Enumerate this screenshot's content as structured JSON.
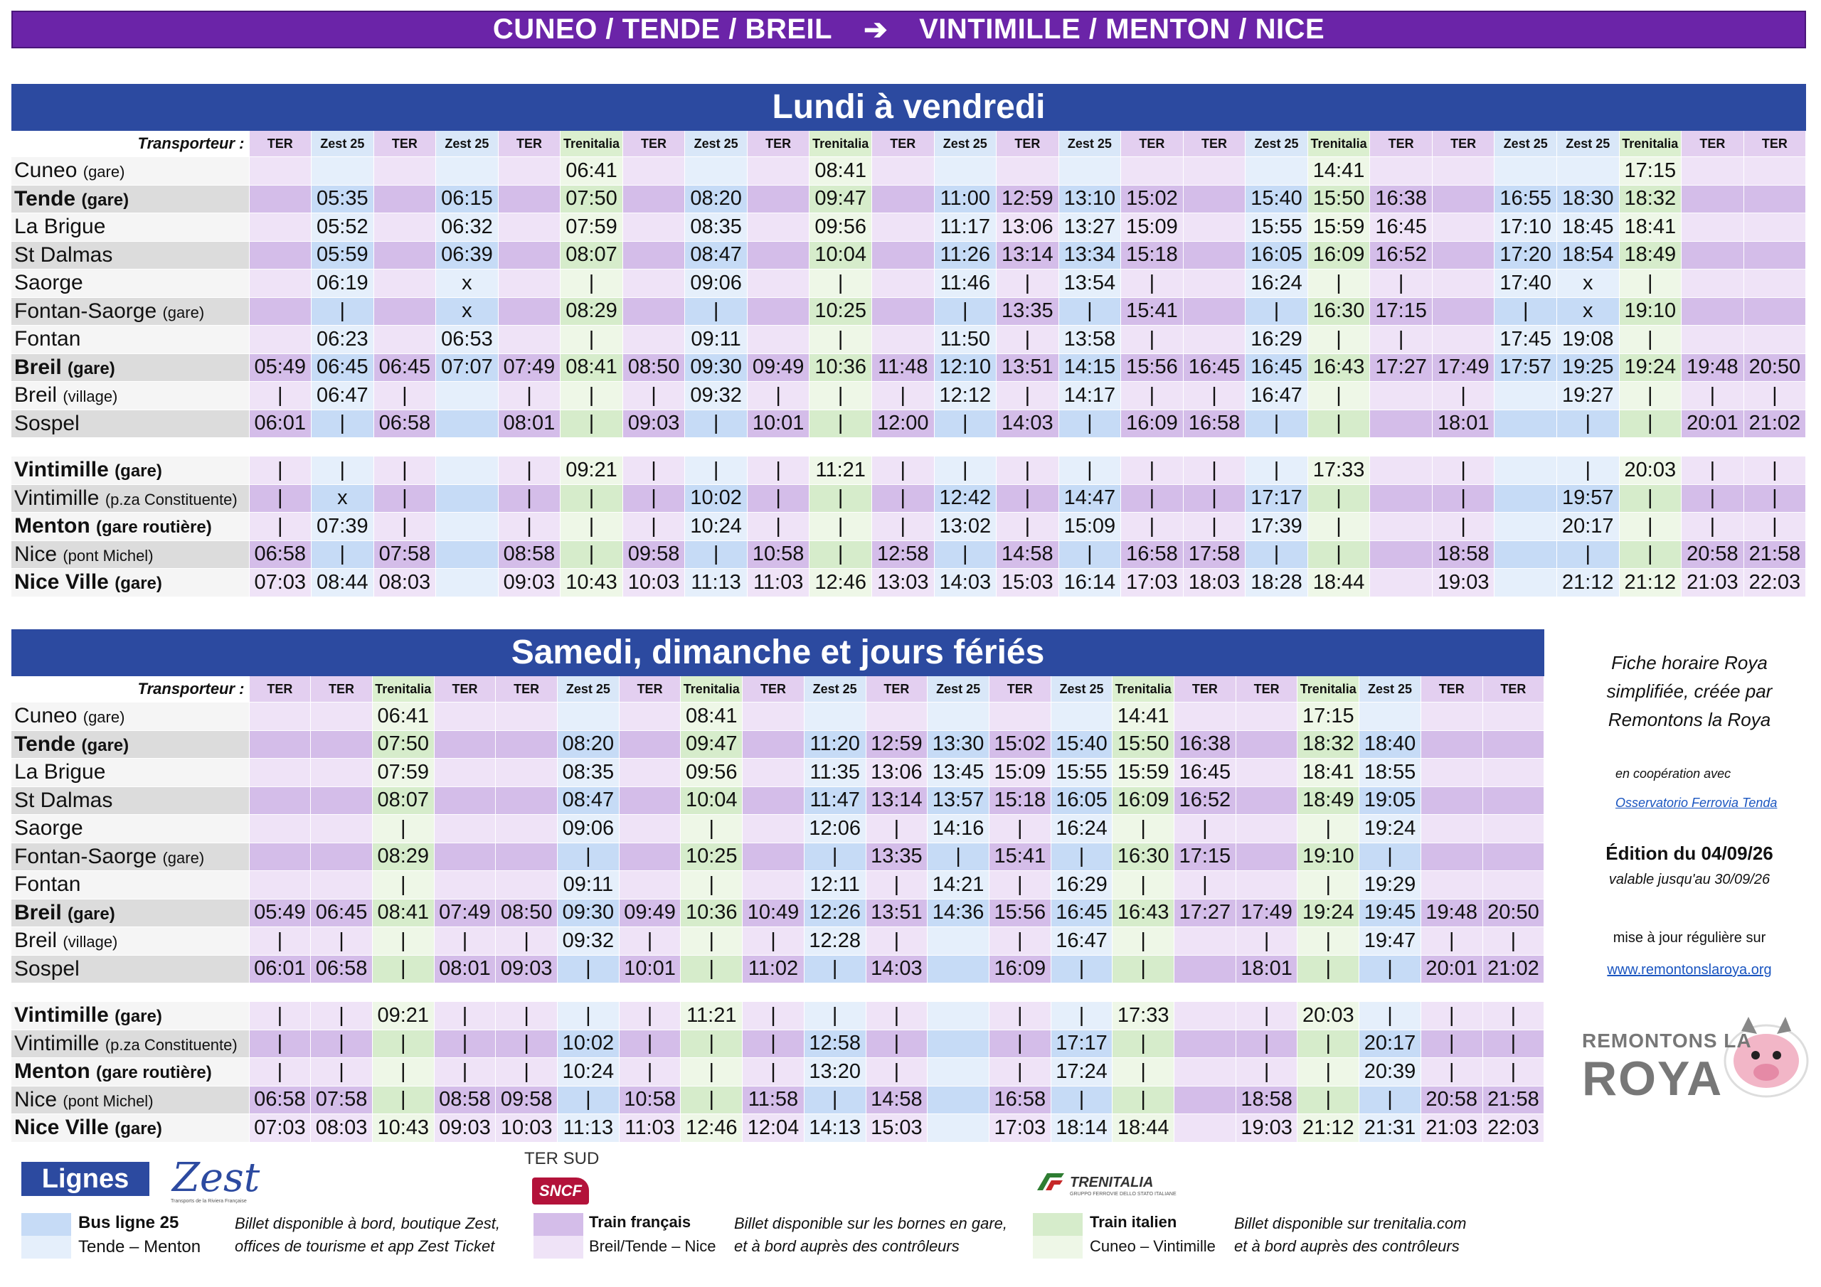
{
  "banner": {
    "from": "CUNEO / TENDE / BREIL",
    "arrow": "➔",
    "to": "VINTIMILLE / MENTON / NICE"
  },
  "weekday": {
    "title": "Lundi à vendredi",
    "header_label": "Transporteur :",
    "carriers": [
      "TER",
      "Zest 25",
      "TER",
      "Zest 25",
      "TER",
      "Trenitalia",
      "TER",
      "Zest 25",
      "TER",
      "Trenitalia",
      "TER",
      "Zest 25",
      "TER",
      "Zest 25",
      "TER",
      "TER",
      "Zest 25",
      "Trenitalia",
      "TER",
      "TER",
      "Zest 25",
      "Zest 25",
      "Trenitalia",
      "TER",
      "TER"
    ],
    "stations": [
      {
        "name": "Cuneo",
        "sub": "(gare)",
        "bold": false
      },
      {
        "name": "Tende",
        "sub": "(gare)",
        "bold": true
      },
      {
        "name": "La Brigue",
        "sub": "",
        "bold": false
      },
      {
        "name": "St Dalmas",
        "sub": "",
        "bold": false
      },
      {
        "name": "Saorge",
        "sub": "",
        "bold": false
      },
      {
        "name": "Fontan-Saorge",
        "sub": "(gare)",
        "bold": false
      },
      {
        "name": "Fontan",
        "sub": "",
        "bold": false
      },
      {
        "name": "Breil",
        "sub": "(gare)",
        "bold": true
      },
      {
        "name": "Breil",
        "sub": "(village)",
        "bold": false
      },
      {
        "name": "Sospel",
        "sub": "",
        "bold": false
      },
      null,
      {
        "name": "Vintimille",
        "sub": "(gare)",
        "bold": true
      },
      {
        "name": "Vintimille",
        "sub": "(p.za Constituente)",
        "bold": false
      },
      {
        "name": "Menton",
        "sub": "(gare routière)",
        "bold": true
      },
      {
        "name": "Nice",
        "sub": "(pont Michel)",
        "bold": false
      },
      {
        "name": "Nice Ville",
        "sub": "(gare)",
        "bold": true
      }
    ],
    "rows": [
      [
        "",
        "",
        "",
        "",
        "",
        "06:41",
        "",
        "",
        "",
        "08:41",
        "",
        "",
        "",
        "",
        "",
        "",
        "",
        "14:41",
        "",
        "",
        "",
        "",
        "17:15",
        "",
        ""
      ],
      [
        "",
        "05:35",
        "",
        "06:15",
        "",
        "07:50",
        "",
        "08:20",
        "",
        "09:47",
        "",
        "11:00",
        "12:59",
        "13:10",
        "15:02",
        "",
        "15:40",
        "15:50",
        "16:38",
        "",
        "16:55",
        "18:30",
        "18:32",
        "",
        ""
      ],
      [
        "",
        "05:52",
        "",
        "06:32",
        "",
        "07:59",
        "",
        "08:35",
        "",
        "09:56",
        "",
        "11:17",
        "13:06",
        "13:27",
        "15:09",
        "",
        "15:55",
        "15:59",
        "16:45",
        "",
        "17:10",
        "18:45",
        "18:41",
        "",
        ""
      ],
      [
        "",
        "05:59",
        "",
        "06:39",
        "",
        "08:07",
        "",
        "08:47",
        "",
        "10:04",
        "",
        "11:26",
        "13:14",
        "13:34",
        "15:18",
        "",
        "16:05",
        "16:09",
        "16:52",
        "",
        "17:20",
        "18:54",
        "18:49",
        "",
        ""
      ],
      [
        "",
        "06:19",
        "",
        "x",
        "",
        "|",
        "",
        "09:06",
        "",
        "|",
        "",
        "11:46",
        "|",
        "13:54",
        "|",
        "",
        "16:24",
        "|",
        "|",
        "",
        "17:40",
        "x",
        "|",
        "",
        ""
      ],
      [
        "",
        "|",
        "",
        "x",
        "",
        "08:29",
        "",
        "|",
        "",
        "10:25",
        "",
        "|",
        "13:35",
        "|",
        "15:41",
        "",
        "|",
        "16:30",
        "17:15",
        "",
        "|",
        "x",
        "19:10",
        "",
        ""
      ],
      [
        "",
        "06:23",
        "",
        "06:53",
        "",
        "|",
        "",
        "09:11",
        "",
        "|",
        "",
        "11:50",
        "|",
        "13:58",
        "|",
        "",
        "16:29",
        "|",
        "|",
        "",
        "17:45",
        "19:08",
        "|",
        "",
        ""
      ],
      [
        "05:49",
        "06:45",
        "06:45",
        "07:07",
        "07:49",
        "08:41",
        "08:50",
        "09:30",
        "09:49",
        "10:36",
        "11:48",
        "12:10",
        "13:51",
        "14:15",
        "15:56",
        "16:45",
        "16:45",
        "16:43",
        "17:27",
        "17:49",
        "17:57",
        "19:25",
        "19:24",
        "19:48",
        "20:50"
      ],
      [
        "|",
        "06:47",
        "|",
        "",
        "|",
        "|",
        "|",
        "09:32",
        "|",
        "|",
        "|",
        "12:12",
        "|",
        "14:17",
        "|",
        "|",
        "16:47",
        "|",
        "",
        "|",
        "",
        "19:27",
        "|",
        "|",
        "|"
      ],
      [
        "06:01",
        "|",
        "06:58",
        "",
        "08:01",
        "|",
        "09:03",
        "|",
        "10:01",
        "|",
        "12:00",
        "|",
        "14:03",
        "|",
        "16:09",
        "16:58",
        "|",
        "|",
        "",
        "18:01",
        "",
        "|",
        "|",
        "20:01",
        "21:02"
      ],
      null,
      [
        "|",
        "|",
        "|",
        "",
        "|",
        "09:21",
        "|",
        "|",
        "|",
        "11:21",
        "|",
        "|",
        "|",
        "|",
        "|",
        "|",
        "|",
        "17:33",
        "",
        "|",
        "",
        "|",
        "20:03",
        "|",
        "|"
      ],
      [
        "|",
        "x",
        "|",
        "",
        "|",
        "|",
        "|",
        "10:02",
        "|",
        "|",
        "|",
        "12:42",
        "|",
        "14:47",
        "|",
        "|",
        "17:17",
        "|",
        "",
        "|",
        "",
        "19:57",
        "|",
        "|",
        "|"
      ],
      [
        "|",
        "07:39",
        "|",
        "",
        "|",
        "|",
        "|",
        "10:24",
        "|",
        "|",
        "|",
        "13:02",
        "|",
        "15:09",
        "|",
        "|",
        "17:39",
        "|",
        "",
        "|",
        "",
        "20:17",
        "|",
        "|",
        "|"
      ],
      [
        "06:58",
        "|",
        "07:58",
        "",
        "08:58",
        "|",
        "09:58",
        "|",
        "10:58",
        "|",
        "12:58",
        "|",
        "14:58",
        "|",
        "16:58",
        "17:58",
        "|",
        "|",
        "",
        "18:58",
        "",
        "|",
        "|",
        "20:58",
        "21:58"
      ],
      [
        "07:03",
        "08:44",
        "08:03",
        "",
        "09:03",
        "10:43",
        "10:03",
        "11:13",
        "11:03",
        "12:46",
        "13:03",
        "14:03",
        "15:03",
        "16:14",
        "17:03",
        "18:03",
        "18:28",
        "18:44",
        "",
        "19:03",
        "",
        "21:12",
        "21:12",
        "21:03",
        "22:03"
      ]
    ]
  },
  "weekend": {
    "title": "Samedi, dimanche et jours fériés",
    "header_label": "Transporteur :",
    "carriers": [
      "TER",
      "TER",
      "Trenitalia",
      "TER",
      "TER",
      "Zest 25",
      "TER",
      "Trenitalia",
      "TER",
      "Zest 25",
      "TER",
      "Zest 25",
      "TER",
      "Zest 25",
      "Trenitalia",
      "TER",
      "TER",
      "Trenitalia",
      "Zest 25",
      "TER",
      "TER"
    ],
    "stations": [
      {
        "name": "Cuneo",
        "sub": "(gare)",
        "bold": false
      },
      {
        "name": "Tende",
        "sub": "(gare)",
        "bold": true
      },
      {
        "name": "La Brigue",
        "sub": "",
        "bold": false
      },
      {
        "name": "St Dalmas",
        "sub": "",
        "bold": false
      },
      {
        "name": "Saorge",
        "sub": "",
        "bold": false
      },
      {
        "name": "Fontan-Saorge",
        "sub": "(gare)",
        "bold": false
      },
      {
        "name": "Fontan",
        "sub": "",
        "bold": false
      },
      {
        "name": "Breil",
        "sub": "(gare)",
        "bold": true
      },
      {
        "name": "Breil",
        "sub": "(village)",
        "bold": false
      },
      {
        "name": "Sospel",
        "sub": "",
        "bold": false
      },
      null,
      {
        "name": "Vintimille",
        "sub": "(gare)",
        "bold": true
      },
      {
        "name": "Vintimille",
        "sub": "(p.za Constituente)",
        "bold": false
      },
      {
        "name": "Menton",
        "sub": "(gare routière)",
        "bold": true
      },
      {
        "name": "Nice",
        "sub": "(pont Michel)",
        "bold": false
      },
      {
        "name": "Nice Ville",
        "sub": "(gare)",
        "bold": true
      }
    ],
    "rows": [
      [
        "",
        "",
        "06:41",
        "",
        "",
        "",
        "",
        "08:41",
        "",
        "",
        "",
        "",
        "",
        "",
        "14:41",
        "",
        "",
        "17:15",
        "",
        "",
        ""
      ],
      [
        "",
        "",
        "07:50",
        "",
        "",
        "08:20",
        "",
        "09:47",
        "",
        "11:20",
        "12:59",
        "13:30",
        "15:02",
        "15:40",
        "15:50",
        "16:38",
        "",
        "18:32",
        "18:40",
        "",
        ""
      ],
      [
        "",
        "",
        "07:59",
        "",
        "",
        "08:35",
        "",
        "09:56",
        "",
        "11:35",
        "13:06",
        "13:45",
        "15:09",
        "15:55",
        "15:59",
        "16:45",
        "",
        "18:41",
        "18:55",
        "",
        ""
      ],
      [
        "",
        "",
        "08:07",
        "",
        "",
        "08:47",
        "",
        "10:04",
        "",
        "11:47",
        "13:14",
        "13:57",
        "15:18",
        "16:05",
        "16:09",
        "16:52",
        "",
        "18:49",
        "19:05",
        "",
        ""
      ],
      [
        "",
        "",
        "|",
        "",
        "",
        "09:06",
        "",
        "|",
        "",
        "12:06",
        "|",
        "14:16",
        "|",
        "16:24",
        "|",
        "|",
        "",
        "|",
        "19:24",
        "",
        ""
      ],
      [
        "",
        "",
        "08:29",
        "",
        "",
        "|",
        "",
        "10:25",
        "",
        "|",
        "13:35",
        "|",
        "15:41",
        "|",
        "16:30",
        "17:15",
        "",
        "19:10",
        "|",
        "",
        ""
      ],
      [
        "",
        "",
        "|",
        "",
        "",
        "09:11",
        "",
        "|",
        "",
        "12:11",
        "|",
        "14:21",
        "|",
        "16:29",
        "|",
        "|",
        "",
        "|",
        "19:29",
        "",
        ""
      ],
      [
        "05:49",
        "06:45",
        "08:41",
        "07:49",
        "08:50",
        "09:30",
        "09:49",
        "10:36",
        "10:49",
        "12:26",
        "13:51",
        "14:36",
        "15:56",
        "16:45",
        "16:43",
        "17:27",
        "17:49",
        "19:24",
        "19:45",
        "19:48",
        "20:50"
      ],
      [
        "|",
        "|",
        "|",
        "|",
        "|",
        "09:32",
        "|",
        "|",
        "|",
        "12:28",
        "|",
        "",
        "|",
        "16:47",
        "|",
        "",
        "|",
        "|",
        "19:47",
        "|",
        "|"
      ],
      [
        "06:01",
        "06:58",
        "|",
        "08:01",
        "09:03",
        "|",
        "10:01",
        "|",
        "11:02",
        "|",
        "14:03",
        "",
        "16:09",
        "|",
        "|",
        "",
        "18:01",
        "|",
        "|",
        "20:01",
        "21:02"
      ],
      null,
      [
        "|",
        "|",
        "09:21",
        "|",
        "|",
        "|",
        "|",
        "11:21",
        "|",
        "|",
        "|",
        "",
        "|",
        "|",
        "17:33",
        "",
        "|",
        "20:03",
        "|",
        "|",
        "|"
      ],
      [
        "|",
        "|",
        "|",
        "|",
        "|",
        "10:02",
        "|",
        "|",
        "|",
        "12:58",
        "|",
        "",
        "|",
        "17:17",
        "|",
        "",
        "|",
        "|",
        "20:17",
        "|",
        "|"
      ],
      [
        "|",
        "|",
        "|",
        "|",
        "|",
        "10:24",
        "|",
        "|",
        "|",
        "13:20",
        "|",
        "",
        "|",
        "17:24",
        "|",
        "",
        "|",
        "|",
        "20:39",
        "|",
        "|"
      ],
      [
        "06:58",
        "07:58",
        "|",
        "08:58",
        "09:58",
        "|",
        "10:58",
        "|",
        "11:58",
        "|",
        "14:58",
        "",
        "16:58",
        "|",
        "|",
        "",
        "18:58",
        "|",
        "|",
        "20:58",
        "21:58"
      ],
      [
        "07:03",
        "08:03",
        "10:43",
        "09:03",
        "10:03",
        "11:13",
        "11:03",
        "12:46",
        "12:04",
        "14:13",
        "15:03",
        "",
        "17:03",
        "18:14",
        "18:44",
        "",
        "19:03",
        "21:12",
        "21:31",
        "21:03",
        "22:03"
      ]
    ]
  },
  "side": {
    "note": "Fiche horaire Roya simplifiée, créée par Remontons la Roya",
    "coop": "en coopération avec",
    "coop_link": "Osservatorio Ferrovia Tenda",
    "edition": "Édition du 04/09/26",
    "valid": "valable jusqu'au 30/09/26",
    "update": "mise à jour régulière sur",
    "url": "www.remontonslaroya.org",
    "logo_line1": "REMONTONS LA",
    "logo_line2": "ROYA"
  },
  "legend": {
    "title": "Lignes",
    "zest_logo": "Zest",
    "zest_tagline": "Transports de la Riviera Française",
    "ter_label": "TER SUD",
    "sncf": "SNCF",
    "trenitalia_logo": "TRENITALIA",
    "trenitalia_tagline": "GRUPPO FERROVIE DELLO STATO ITALIANE",
    "bus_name": "Bus ligne 25",
    "bus_route": "Tende – Menton",
    "bus_desc1": "Billet disponible à bord, boutique Zest,",
    "bus_desc2": "offices de tourisme et app Zest Ticket",
    "ter_name": "Train français",
    "ter_route": "Breil/Tende – Nice",
    "ter_desc1": "Billet disponible sur les bornes en gare,",
    "ter_desc2": "et à bord auprès des contrôleurs",
    "tri_name": "Train italien",
    "tri_route": "Cuneo – Vintimille",
    "tri_desc1": "Billet disponible sur trenitalia.com",
    "tri_desc2": "et à bord auprès des contrôleurs"
  },
  "colors": {
    "ter": "#d4bde9",
    "bus": "#c6dbf6",
    "trenitalia": "#d6eccb",
    "title_bar": "#2c4aa0",
    "banner": "#6b24a8"
  }
}
